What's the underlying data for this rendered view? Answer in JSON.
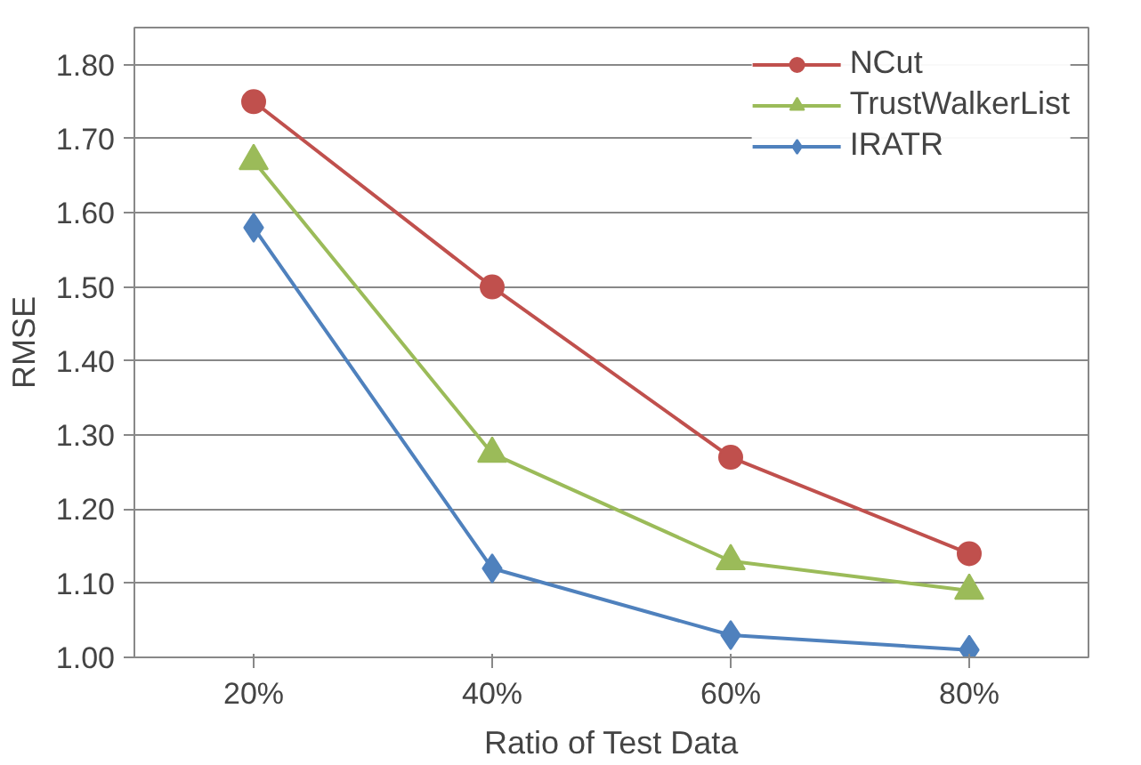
{
  "chart_data": {
    "type": "line",
    "xlabel": "Ratio of Test Data",
    "ylabel": "RMSE",
    "categories": [
      "20%",
      "40%",
      "60%",
      "80%"
    ],
    "series": [
      {
        "name": "NCut",
        "color": "#c0504d",
        "marker": "circle",
        "values": [
          1.75,
          1.5,
          1.27,
          1.14
        ]
      },
      {
        "name": "TrustWalkerList",
        "color": "#9bbb59",
        "marker": "triangle",
        "values": [
          1.67,
          1.275,
          1.13,
          1.09
        ]
      },
      {
        "name": "IRATR",
        "color": "#4f81bd",
        "marker": "diamond",
        "values": [
          1.58,
          1.12,
          1.03,
          1.01
        ]
      }
    ],
    "ylim": [
      1.0,
      1.85
    ],
    "yticks": [
      {
        "value": 1.0,
        "label": "1.00"
      },
      {
        "value": 1.1,
        "label": "1.10"
      },
      {
        "value": 1.2,
        "label": "1.20"
      },
      {
        "value": 1.3,
        "label": "1.30"
      },
      {
        "value": 1.4,
        "label": "1.40"
      },
      {
        "value": 1.5,
        "label": "1.50"
      },
      {
        "value": 1.6,
        "label": "1.60"
      },
      {
        "value": 1.7,
        "label": "1.70"
      },
      {
        "value": 1.8,
        "label": "1.80"
      }
    ],
    "grid": "y",
    "legend": "top right",
    "line_style": "solid"
  }
}
